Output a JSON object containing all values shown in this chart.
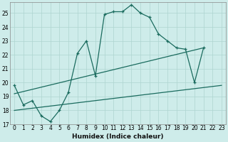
{
  "xlabel": "Humidex (Indice chaleur)",
  "bg_color": "#ceecea",
  "grid_color": "#aed4d0",
  "line_color": "#1a6b5e",
  "xlim": [
    -0.5,
    23.5
  ],
  "ylim": [
    17,
    25.8
  ],
  "yticks": [
    17,
    18,
    19,
    20,
    21,
    22,
    23,
    24,
    25
  ],
  "xticks": [
    0,
    1,
    2,
    3,
    4,
    5,
    6,
    7,
    8,
    9,
    10,
    11,
    12,
    13,
    14,
    15,
    16,
    17,
    18,
    19,
    20,
    21,
    22,
    23
  ],
  "series1_x": [
    0,
    1,
    2,
    3,
    4,
    5,
    6,
    7,
    8,
    9,
    10,
    11,
    12,
    13,
    14,
    15,
    16,
    17,
    18,
    19,
    20,
    21
  ],
  "series1_y": [
    19.8,
    18.4,
    18.7,
    17.6,
    17.2,
    18.0,
    19.3,
    22.1,
    23.0,
    20.5,
    24.9,
    25.1,
    25.1,
    25.6,
    25.0,
    24.7,
    23.5,
    23.0,
    22.5,
    22.4,
    20.0,
    22.5
  ],
  "series2_x": [
    0,
    23
  ],
  "series2_y": [
    18.0,
    19.8
  ],
  "series3_x": [
    0,
    21
  ],
  "series3_y": [
    19.2,
    22.5
  ],
  "xlabel_fontsize": 6.5,
  "tick_fontsize": 5.5
}
